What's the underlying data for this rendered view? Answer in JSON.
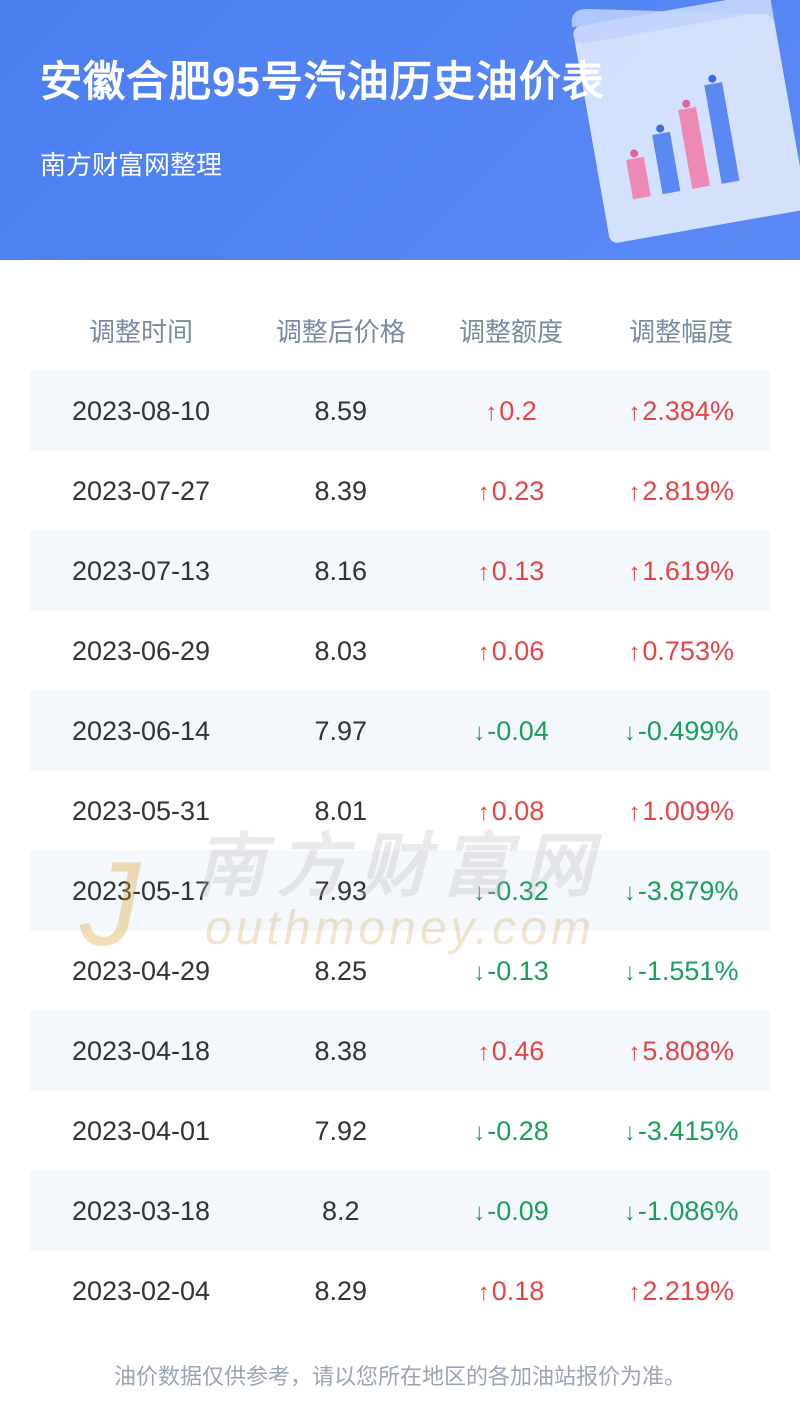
{
  "header": {
    "title": "安徽合肥95号汽油历史油价表",
    "subtitle": "南方财富网整理",
    "bg_color_start": "#4a7ef0",
    "bg_color_end": "#5b8af5"
  },
  "columns": {
    "c1": "调整时间",
    "c2": "调整后价格",
    "c3": "调整额度",
    "c4": "调整幅度"
  },
  "colors": {
    "up": "#e64545",
    "down": "#1aa05a",
    "header_text": "#7a8aa0",
    "body_text": "#333333",
    "row_even_bg": "#f4f7fc",
    "row_odd_bg": "#ffffff",
    "footer_text": "#9aa4b2"
  },
  "arrows": {
    "up": "↑",
    "down": "↓"
  },
  "rows": [
    {
      "date": "2023-08-10",
      "price": "8.59",
      "amount": "0.2",
      "percent": "2.384%",
      "dir": "up"
    },
    {
      "date": "2023-07-27",
      "price": "8.39",
      "amount": "0.23",
      "percent": "2.819%",
      "dir": "up"
    },
    {
      "date": "2023-07-13",
      "price": "8.16",
      "amount": "0.13",
      "percent": "1.619%",
      "dir": "up"
    },
    {
      "date": "2023-06-29",
      "price": "8.03",
      "amount": "0.06",
      "percent": "0.753%",
      "dir": "up"
    },
    {
      "date": "2023-06-14",
      "price": "7.97",
      "amount": "-0.04",
      "percent": "-0.499%",
      "dir": "down"
    },
    {
      "date": "2023-05-31",
      "price": "8.01",
      "amount": "0.08",
      "percent": "1.009%",
      "dir": "up"
    },
    {
      "date": "2023-05-17",
      "price": "7.93",
      "amount": "-0.32",
      "percent": "-3.879%",
      "dir": "down"
    },
    {
      "date": "2023-04-29",
      "price": "8.25",
      "amount": "-0.13",
      "percent": "-1.551%",
      "dir": "down"
    },
    {
      "date": "2023-04-18",
      "price": "8.38",
      "amount": "0.46",
      "percent": "5.808%",
      "dir": "up"
    },
    {
      "date": "2023-04-01",
      "price": "7.92",
      "amount": "-0.28",
      "percent": "-3.415%",
      "dir": "down"
    },
    {
      "date": "2023-03-18",
      "price": "8.2",
      "amount": "-0.09",
      "percent": "-1.086%",
      "dir": "down"
    },
    {
      "date": "2023-02-04",
      "price": "8.29",
      "amount": "0.18",
      "percent": "2.219%",
      "dir": "up"
    }
  ],
  "footer": "油价数据仅供参考，请以您所在地区的各加油站报价为准。",
  "watermark": {
    "cn": "南方财富网",
    "en": "outhmoney.com",
    "j": "J"
  }
}
